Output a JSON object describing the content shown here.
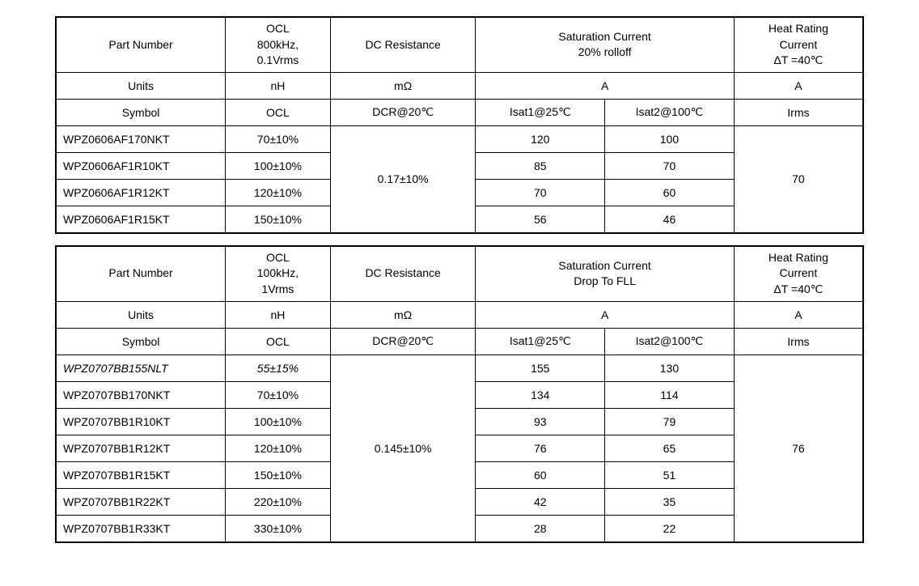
{
  "table1": {
    "headers": {
      "partNumber": "Part Number",
      "ocl": "OCL\n800kHz,\n0.1Vrms",
      "dcr": "DC Resistance",
      "sat": "Saturation Current\n20% rolloff",
      "heat": "Heat Rating\nCurrent\nΔT =40℃"
    },
    "unitsRow": {
      "label": "Units",
      "ocl": "nH",
      "dcr": "mΩ",
      "sat": "A",
      "heat": "A"
    },
    "symbolRow": {
      "label": "Symbol",
      "ocl": "OCL",
      "dcr": "DCR@20℃",
      "isat1": "Isat1@25℃",
      "isat2": "Isat2@100℃",
      "irms": "Irms"
    },
    "dcrMerged": "0.17±10%",
    "irmsMerged": "70",
    "rows": [
      {
        "pn": "WPZ0606AF170NKT",
        "ocl": "70±10%",
        "isat1": "120",
        "isat2": "100"
      },
      {
        "pn": "WPZ0606AF1R10KT",
        "ocl": "100±10%",
        "isat1": "85",
        "isat2": "70"
      },
      {
        "pn": "WPZ0606AF1R12KT",
        "ocl": "120±10%",
        "isat1": "70",
        "isat2": "60"
      },
      {
        "pn": "WPZ0606AF1R15KT",
        "ocl": "150±10%",
        "isat1": "56",
        "isat2": "46"
      }
    ]
  },
  "table2": {
    "headers": {
      "partNumber": "Part Number",
      "ocl": "OCL\n100kHz,\n1Vrms",
      "dcr": "DC Resistance",
      "sat": "Saturation Current\nDrop To FLL",
      "heat": "Heat Rating\nCurrent\nΔT =40℃"
    },
    "unitsRow": {
      "label": "Units",
      "ocl": "nH",
      "dcr": "mΩ",
      "sat": "A",
      "heat": "A"
    },
    "symbolRow": {
      "label": "Symbol",
      "ocl": "OCL",
      "dcr": "DCR@20℃",
      "isat1": "Isat1@25℃",
      "isat2": "Isat2@100℃",
      "irms": "Irms"
    },
    "dcrMerged": "0.145±10%",
    "irmsMerged": "76",
    "rows": [
      {
        "pn": "WPZ0707BB155NLT",
        "ocl": "55±15%",
        "isat1": "155",
        "isat2": "130",
        "italic": true
      },
      {
        "pn": "WPZ0707BB170NKT",
        "ocl": "70±10%",
        "isat1": "134",
        "isat2": "114"
      },
      {
        "pn": "WPZ0707BB1R10KT",
        "ocl": "100±10%",
        "isat1": "93",
        "isat2": "79"
      },
      {
        "pn": "WPZ0707BB1R12KT",
        "ocl": "120±10%",
        "isat1": "76",
        "isat2": "65"
      },
      {
        "pn": "WPZ0707BB1R15KT",
        "ocl": "150±10%",
        "isat1": "60",
        "isat2": "51"
      },
      {
        "pn": "WPZ0707BB1R22KT",
        "ocl": "220±10%",
        "isat1": "42",
        "isat2": "35"
      },
      {
        "pn": "WPZ0707BB1R33KT",
        "ocl": "330±10%",
        "isat1": "28",
        "isat2": "22"
      }
    ]
  },
  "layout": {
    "colWidths": {
      "pn": "21%",
      "ocl": "13%",
      "dcr": "18%",
      "isat1": "16%",
      "isat2": "16%",
      "irms": "16%"
    }
  }
}
